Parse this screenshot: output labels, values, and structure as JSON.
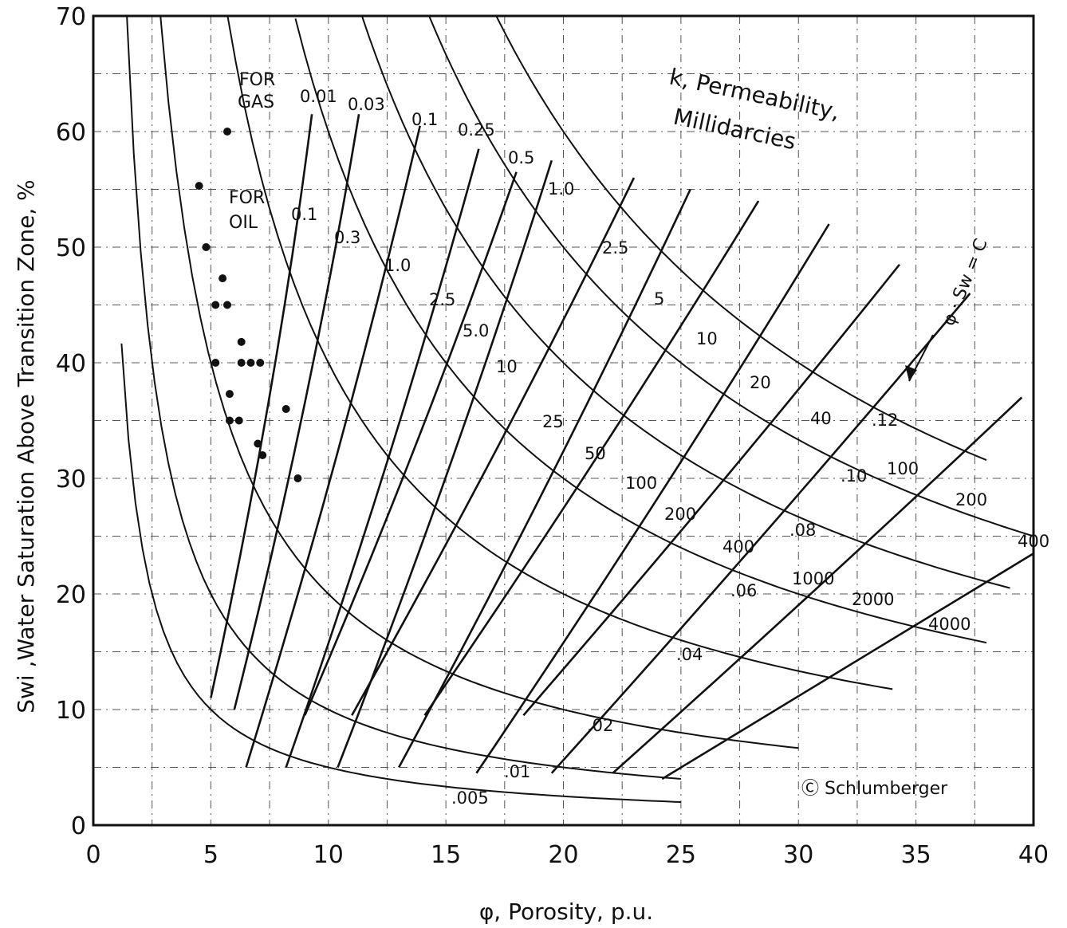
{
  "chart_data": {
    "type": "line",
    "xlabel": "φ, Porosity, p.u.",
    "ylabel": "Swi ,Water Saturation Above Transition Zone, %",
    "ylabel_unit": "%",
    "xlim": [
      0,
      40
    ],
    "ylim": [
      0,
      70
    ],
    "x_ticks": [
      "0",
      "5",
      "10",
      "15",
      "20",
      "25",
      "30",
      "35",
      "40"
    ],
    "y_ticks": [
      "0",
      "10",
      "20",
      "30",
      "40",
      "50",
      "60",
      "70"
    ],
    "grid": true,
    "family_bvw": {
      "description_label": "φ · Sw = C",
      "curves": [
        {
          "label": ".005",
          "value": 0.005,
          "x_range": [
            1.2,
            25
          ]
        },
        {
          "label": ".01",
          "value": 0.01,
          "x_range": [
            1.4,
            25
          ]
        },
        {
          "label": ".02",
          "value": 0.02,
          "x_range": [
            2.8,
            30
          ]
        },
        {
          "label": ".04",
          "value": 0.04,
          "x_range": [
            5.7,
            34
          ]
        },
        {
          "label": ".06",
          "value": 0.06,
          "x_range": [
            8.6,
            38
          ]
        },
        {
          "label": ".08",
          "value": 0.08,
          "x_range": [
            11.4,
            39
          ]
        },
        {
          "label": ".10",
          "value": 0.1,
          "x_range": [
            14.3,
            40
          ]
        },
        {
          "label": ".12",
          "value": 0.12,
          "x_range": [
            17.1,
            38
          ]
        }
      ]
    },
    "family_gas": {
      "label": "FOR GAS",
      "curves": [
        {
          "label": "0.01",
          "points": [
            [
              9.3,
              61.5
            ],
            [
              5.0,
              11
            ]
          ]
        },
        {
          "label": "0.03",
          "points": [
            [
              11.3,
              61.5
            ],
            [
              6.0,
              10
            ]
          ]
        },
        {
          "label": "0.1",
          "points": [
            [
              13.9,
              60.5
            ],
            [
              6.5,
              5
            ]
          ]
        },
        {
          "label": "0.25",
          "points": [
            [
              16.4,
              58.5
            ],
            [
              8.2,
              5
            ]
          ]
        },
        {
          "label": "0.5",
          "points": [
            [
              18.0,
              56.5
            ],
            [
              9.0,
              9.5
            ]
          ]
        },
        {
          "label": "1.0",
          "points": [
            [
              19.5,
              57.5
            ],
            [
              10.4,
              5
            ]
          ]
        },
        {
          "label": "2.5",
          "points": [
            [
              23.0,
              56.0
            ],
            [
              11.0,
              9.5
            ]
          ]
        },
        {
          "label": "5",
          "points": [
            [
              25.4,
              55.0
            ],
            [
              13.0,
              5
            ]
          ]
        },
        {
          "label": "10",
          "points": [
            [
              28.3,
              54.0
            ],
            [
              14.1,
              9.5
            ]
          ]
        },
        {
          "label": "20",
          "points": [
            [
              31.3,
              52.0
            ],
            [
              16.3,
              4.5
            ]
          ]
        },
        {
          "label": "40",
          "points": [
            [
              34.3,
              48.5
            ],
            [
              18.3,
              9.5
            ]
          ]
        },
        {
          "label": "100",
          "points": [
            [
              37.3,
              46.0
            ],
            [
              19.5,
              4.5
            ]
          ]
        },
        {
          "label": "200",
          "points": [
            [
              39.5,
              37.0
            ],
            [
              22.1,
              4.5
            ]
          ]
        },
        {
          "label": "400",
          "points": [
            [
              40.0,
              23.5
            ],
            [
              24.2,
              4.0
            ]
          ]
        }
      ]
    },
    "family_oil": {
      "label": "FOR OIL",
      "curve_labels": [
        "0.1",
        "0.3",
        "1.0",
        "2.5",
        "5.0",
        "10",
        "25",
        "50",
        "100",
        "200",
        "400",
        "1000",
        "2000",
        "4000"
      ]
    },
    "scatter_points": [
      [
        5.7,
        60
      ],
      [
        4.5,
        55.3
      ],
      [
        4.8,
        50
      ],
      [
        5.5,
        47.3
      ],
      [
        5.2,
        45
      ],
      [
        5.7,
        45
      ],
      [
        5.2,
        40
      ],
      [
        6.3,
        41.8
      ],
      [
        6.3,
        40
      ],
      [
        6.7,
        40
      ],
      [
        7.1,
        40
      ],
      [
        5.8,
        37.3
      ],
      [
        5.8,
        35
      ],
      [
        6.2,
        35
      ],
      [
        7.0,
        33
      ],
      [
        7.2,
        32
      ],
      [
        8.2,
        36
      ],
      [
        8.7,
        30
      ]
    ],
    "annotations": {
      "permeability_label_1": "k, Permeability,",
      "permeability_label_2": "Millidarcies",
      "for_gas_1": "FOR",
      "for_gas_2": "GAS",
      "for_oil_1": "FOR",
      "for_oil_2": "OIL",
      "constant_label": "φ · Sw = C",
      "copyright": "Ⓒ Schlumberger"
    },
    "gas_curve_labels": [
      "0.01",
      "0.03",
      "0.1",
      "0.25",
      "0.5",
      "1.0",
      "2.5",
      "5",
      "10",
      "20",
      "40",
      "100",
      "200",
      "400"
    ],
    "bvw_curve_labels": [
      ".005",
      ".01",
      ".02",
      ".04",
      ".06",
      ".08",
      ".10",
      ".12"
    ]
  }
}
